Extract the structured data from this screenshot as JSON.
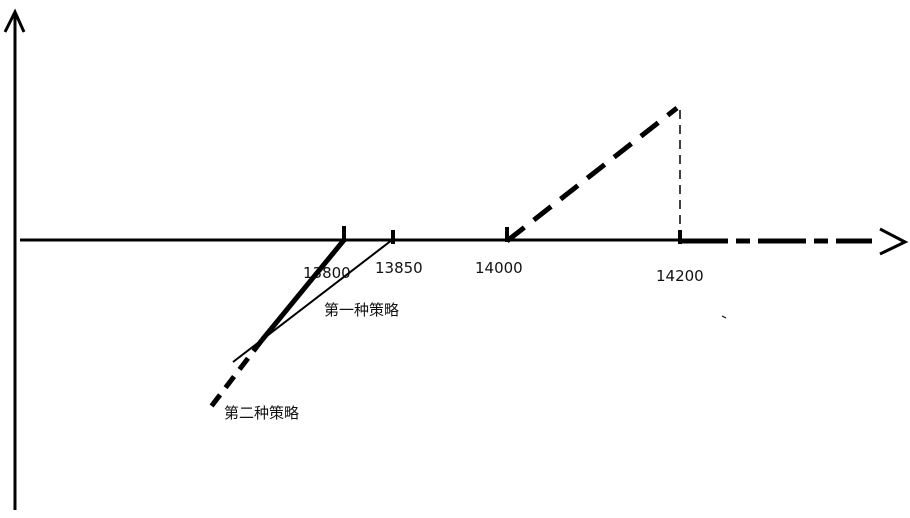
{
  "axis_labels": {
    "x13800": "13800",
    "x13850": "13850",
    "x14000": "14000",
    "x14200": "14200"
  },
  "annotations": {
    "strategy_one": "第一种策略",
    "strategy_two": "第二种策略"
  },
  "colors": {
    "ink": "#000000",
    "background": "#ffffff"
  }
}
